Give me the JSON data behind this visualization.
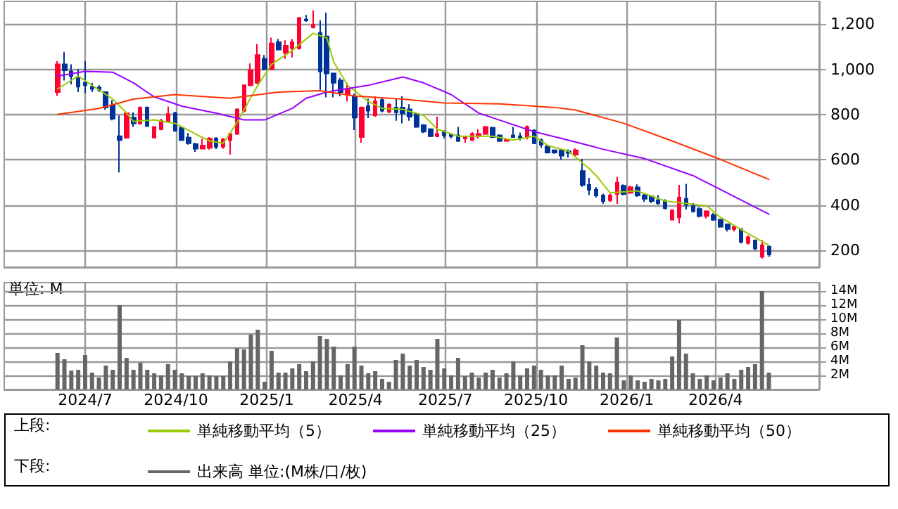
{
  "chart_data": [
    {
      "type": "candlestick",
      "xlim": [
        "2024-04-10",
        "2026-07-15"
      ],
      "ylim": [
        125,
        1300
      ],
      "grid": true,
      "tick_labels": "y",
      "legend": "bottom",
      "annotations": [
        "上段:"
      ],
      "xticks": [
        "2024-07-01",
        "2024-10-01",
        "2025-01-01",
        "2025-04-01",
        "2025-07-01",
        "2025-10-01",
        "2026-01-01",
        "2026-04-01"
      ],
      "yticks": [
        200,
        400,
        600,
        800,
        {
          "value": 1000,
          "label": "1,000"
        },
        {
          "value": 1200,
          "label": "1,200"
        }
      ],
      "x": [
        "2024-06-03",
        "2024-06-10",
        "2024-06-17",
        "2024-06-24",
        "2024-07-01",
        "2024-07-08",
        "2024-07-15",
        "2024-07-22",
        "2024-07-29",
        "2024-08-05",
        "2024-08-12",
        "2024-08-19",
        "2024-08-26",
        "2024-09-02",
        "2024-09-09",
        "2024-09-16",
        "2024-09-23",
        "2024-09-30",
        "2024-10-07",
        "2024-10-14",
        "2024-10-21",
        "2024-10-28",
        "2024-11-04",
        "2024-11-11",
        "2024-11-18",
        "2024-11-25",
        "2024-12-02",
        "2024-12-09",
        "2024-12-16",
        "2024-12-23",
        "2024-12-30",
        "2025-01-06",
        "2025-01-13",
        "2025-01-20",
        "2025-01-27",
        "2025-02-03",
        "2025-02-10",
        "2025-02-17",
        "2025-02-24",
        "2025-03-03",
        "2025-03-10",
        "2025-03-17",
        "2025-03-24",
        "2025-03-31",
        "2025-04-07",
        "2025-04-14",
        "2025-04-21",
        "2025-04-28",
        "2025-05-05",
        "2025-05-12",
        "2025-05-19",
        "2025-05-26",
        "2025-06-02",
        "2025-06-09",
        "2025-06-16",
        "2025-06-23",
        "2025-06-30",
        "2025-07-07",
        "2025-07-14",
        "2025-07-21",
        "2025-07-28",
        "2025-08-04",
        "2025-08-11",
        "2025-08-18",
        "2025-08-25",
        "2025-09-01",
        "2025-09-08",
        "2025-09-15",
        "2025-09-22",
        "2025-09-29",
        "2025-10-06",
        "2025-10-13",
        "2025-10-20",
        "2025-10-27",
        "2025-11-03",
        "2025-11-10",
        "2025-11-17",
        "2025-11-24",
        "2025-12-01",
        "2025-12-08",
        "2025-12-15",
        "2025-12-22",
        "2025-12-29",
        "2026-01-05",
        "2026-01-12",
        "2026-01-19",
        "2026-01-26",
        "2026-02-02",
        "2026-02-09",
        "2026-02-16",
        "2026-02-23",
        "2026-03-02",
        "2026-03-09",
        "2026-03-16",
        "2026-03-23",
        "2026-03-30",
        "2026-04-06",
        "2026-04-13",
        "2026-04-20",
        "2026-04-27",
        "2026-05-04",
        "2026-05-11",
        "2026-05-18",
        "2026-05-25"
      ],
      "series": [
        {
          "ohlc": [
            [
              899,
              1036,
              882,
              1022
            ],
            [
              1022,
              1077,
              950,
              995
            ],
            [
              991,
              1022,
              933,
              970
            ],
            [
              964,
              1001,
              899,
              923
            ],
            [
              940,
              1036,
              895,
              929
            ],
            [
              923,
              940,
              899,
              913
            ],
            [
              919,
              929,
              899,
              909
            ],
            [
              899,
              899,
              821,
              831
            ],
            [
              841,
              864,
              774,
              782
            ],
            [
              704,
              796,
              544,
              687
            ],
            [
              698,
              813,
              692,
              806
            ],
            [
              786,
              810,
              745,
              761
            ],
            [
              761,
              835,
              755,
              831
            ],
            [
              831,
              835,
              745,
              749
            ],
            [
              698,
              748,
              695,
              745
            ],
            [
              735,
              780,
              730,
              772
            ],
            [
              769,
              835,
              765,
              802
            ],
            [
              806,
              812,
              724,
              728
            ],
            [
              741,
              745,
              683,
              687
            ],
            [
              698,
              718,
              667,
              673
            ],
            [
              669,
              675,
              635,
              649
            ],
            [
              649,
              692,
              647,
              663
            ],
            [
              653,
              700,
              645,
              694
            ],
            [
              694,
              700,
              647,
              657
            ],
            [
              657,
              696,
              649,
              690
            ],
            [
              687,
              718,
              622,
              714
            ],
            [
              714,
              827,
              710,
              823
            ],
            [
              817,
              933,
              810,
              929
            ],
            [
              929,
              1026,
              925,
              995
            ],
            [
              940,
              1112,
              935,
              1063
            ],
            [
              1046,
              1063,
              995,
              1001
            ],
            [
              1001,
              1140,
              995,
              1114
            ],
            [
              1120,
              1134,
              1083,
              1087
            ],
            [
              1073,
              1128,
              1046,
              1104
            ],
            [
              1093,
              1134,
              1052,
              1120
            ],
            [
              1093,
              1231,
              1087,
              1227
            ],
            [
              1220,
              1240,
              1210,
              1216
            ],
            [
              1186,
              1260,
              1180,
              1196
            ],
            [
              1161,
              1216,
              909,
              991
            ],
            [
              1145,
              1250,
              876,
              981
            ],
            [
              981,
              985,
              876,
              940
            ],
            [
              950,
              962,
              880,
              899
            ],
            [
              888,
              940,
              858,
              913
            ],
            [
              878,
              892,
              731,
              786
            ],
            [
              700,
              835,
              675,
              831
            ],
            [
              837,
              870,
              784,
              817
            ],
            [
              796,
              880,
              790,
              858
            ],
            [
              864,
              870,
              810,
              817
            ],
            [
              813,
              850,
              806,
              843
            ],
            [
              831,
              870,
              772,
              810
            ],
            [
              831,
              880,
              761,
              806
            ],
            [
              823,
              845,
              772,
              790
            ],
            [
              802,
              810,
              741,
              745
            ],
            [
              753,
              757,
              718,
              724
            ],
            [
              735,
              739,
              700,
              704
            ],
            [
              704,
              790,
              700,
              714
            ],
            [
              724,
              730,
              695,
              708
            ],
            [
              712,
              718,
              695,
              704
            ],
            [
              708,
              745,
              679,
              683
            ],
            [
              694,
              706,
              675,
              700
            ],
            [
              687,
              722,
              683,
              714
            ],
            [
              704,
              735,
              694,
              714
            ],
            [
              714,
              749,
              710,
              745
            ],
            [
              741,
              745,
              696,
              700
            ],
            [
              708,
              712,
              679,
              683
            ],
            [
              683,
              692,
              681,
              687
            ],
            [
              708,
              745,
              696,
              700
            ],
            [
              704,
              720,
              685,
              694
            ],
            [
              700,
              751,
              690,
              745
            ],
            [
              729,
              735,
              669,
              673
            ],
            [
              687,
              694,
              653,
              667
            ],
            [
              659,
              663,
              628,
              632
            ],
            [
              642,
              646,
              626,
              632
            ],
            [
              642,
              650,
              600,
              618
            ],
            [
              638,
              646,
              610,
              630
            ],
            [
              622,
              650,
              614,
              642
            ],
            [
              550,
              603,
              480,
              489
            ],
            [
              489,
              520,
              444,
              468
            ],
            [
              468,
              479,
              432,
              442
            ],
            [
              442,
              450,
              405,
              417
            ],
            [
              421,
              450,
              413,
              442
            ],
            [
              448,
              524,
              405,
              499
            ],
            [
              485,
              491,
              442,
              448
            ],
            [
              454,
              485,
              450,
              478
            ],
            [
              478,
              491,
              436,
              442
            ],
            [
              442,
              450,
              413,
              427
            ],
            [
              438,
              442,
              409,
              417
            ],
            [
              421,
              444,
              401,
              407
            ],
            [
              417,
              425,
              380,
              386
            ],
            [
              335,
              380,
              335,
              376
            ],
            [
              345,
              489,
              319,
              433
            ],
            [
              427,
              493,
              380,
              401
            ],
            [
              396,
              409,
              366,
              372
            ],
            [
              382,
              390,
              345,
              351
            ],
            [
              351,
              376,
              340,
              372
            ],
            [
              355,
              364,
              330,
              335
            ],
            [
              335,
              339,
              300,
              304
            ],
            [
              314,
              318,
              283,
              294
            ],
            [
              294,
              310,
              283,
              304
            ],
            [
              294,
              296,
              230,
              237
            ],
            [
              232,
              265,
              225,
              257
            ],
            [
              243,
              247,
              200,
              208
            ],
            [
              171,
              245,
              163,
              222
            ],
            [
              216,
              220,
              171,
              181
            ]
          ],
          "colors": [
            "#ff0033",
            "#003399",
            "#003399",
            "#003399",
            "#003399",
            "#003399",
            "#003399",
            "#003399",
            "#003399",
            "#003399",
            "#ff0033",
            "#003399",
            "#ff0033",
            "#003399",
            "#ff0033",
            "#ff0033",
            "#ff0033",
            "#003399",
            "#003399",
            "#003399",
            "#003399",
            "#ff0033",
            "#ff0033",
            "#003399",
            "#ff0033",
            "#ff0033",
            "#ff0033",
            "#ff0033",
            "#ff0033",
            "#ff0033",
            "#003399",
            "#ff0033",
            "#003399",
            "#ff0033",
            "#ff0033",
            "#ff0033",
            "#003399",
            "#ff0033",
            "#003399",
            "#003399",
            "#003399",
            "#003399",
            "#ff0033",
            "#003399",
            "#ff0033",
            "#003399",
            "#ff0033",
            "#003399",
            "#ff0033",
            "#003399",
            "#003399",
            "#003399",
            "#003399",
            "#003399",
            "#003399",
            "#ff0033",
            "#003399",
            "#003399",
            "#003399",
            "#ff0033",
            "#ff0033",
            "#ff0033",
            "#ff0033",
            "#003399",
            "#003399",
            "#ff0033",
            "#003399",
            "#003399",
            "#ff0033",
            "#003399",
            "#003399",
            "#003399",
            "#003399",
            "#003399",
            "#003399",
            "#ff0033",
            "#003399",
            "#003399",
            "#003399",
            "#003399",
            "#ff0033",
            "#ff0033",
            "#003399",
            "#ff0033",
            "#003399",
            "#003399",
            "#003399",
            "#003399",
            "#003399",
            "#ff0033",
            "#ff0033",
            "#003399",
            "#003399",
            "#003399",
            "#ff0033",
            "#003399",
            "#003399",
            "#003399",
            "#ff0033",
            "#003399",
            "#ff0033",
            "#003399",
            "#ff0033",
            "#003399"
          ]
        },
        {
          "type": "line",
          "name": "単純移動平均（5）",
          "color": "#99cc00",
          "x": [
            "2024-06-03",
            "2024-06-24",
            "2024-07-29",
            "2024-08-12",
            "2024-08-19",
            "2024-09-09",
            "2024-09-30",
            "2024-10-21",
            "2024-11-04",
            "2024-11-18",
            "2024-12-02",
            "2024-12-23",
            "2025-01-06",
            "2025-01-27",
            "2025-02-17",
            "2025-03-03",
            "2025-03-10",
            "2025-03-24",
            "2025-04-14",
            "2025-04-28",
            "2025-05-19",
            "2025-06-09",
            "2025-06-23",
            "2025-07-14",
            "2025-08-04",
            "2025-08-18",
            "2025-09-08",
            "2025-09-29",
            "2025-10-13",
            "2025-11-03",
            "2025-11-24",
            "2025-12-01",
            "2025-12-15",
            "2026-01-12",
            "2026-02-09",
            "2026-03-23",
            "2026-04-06",
            "2026-05-04",
            "2026-05-25"
          ],
          "values": [
            913,
            970,
            868,
            806,
            769,
            776,
            761,
            714,
            683,
            673,
            765,
            929,
            1022,
            1083,
            1159,
            1139,
            1032,
            929,
            858,
            827,
            823,
            796,
            735,
            704,
            704,
            704,
            687,
            704,
            663,
            638,
            560,
            530,
            454,
            462,
            417,
            396,
            345,
            273,
            222
          ]
        },
        {
          "type": "line",
          "name": "単純移動平均（25）",
          "color": "#9900ff",
          "x": [
            "2024-06-03",
            "2024-07-01",
            "2024-07-29",
            "2024-08-19",
            "2024-09-09",
            "2024-10-07",
            "2024-11-11",
            "2024-12-09",
            "2024-12-30",
            "2025-01-27",
            "2025-02-10",
            "2025-03-03",
            "2025-03-17",
            "2025-04-14",
            "2025-05-19",
            "2025-06-09",
            "2025-07-07",
            "2025-08-04",
            "2025-09-01",
            "2025-09-29",
            "2025-10-27",
            "2025-11-24",
            "2025-12-08",
            "2026-01-19",
            "2026-03-09",
            "2026-04-20",
            "2026-05-25"
          ],
          "values": [
            970,
            991,
            987,
            940,
            878,
            837,
            806,
            776,
            776,
            827,
            872,
            899,
            910,
            929,
            966,
            940,
            888,
            806,
            765,
            724,
            694,
            663,
            646,
            605,
            530,
            437,
            359
          ]
        },
        {
          "type": "line",
          "name": "単純移動平均（50）",
          "color": "#ff3300",
          "x": [
            "2024-06-03",
            "2024-07-15",
            "2024-08-19",
            "2024-09-30",
            "2024-11-25",
            "2025-01-13",
            "2025-02-24",
            "2025-03-31",
            "2025-05-19",
            "2025-06-30",
            "2025-08-25",
            "2025-10-20",
            "2025-11-10",
            "2025-12-29",
            "2026-02-16",
            "2026-04-06",
            "2026-05-25"
          ],
          "values": [
            800,
            827,
            868,
            888,
            872,
            899,
            905,
            882,
            868,
            851,
            847,
            831,
            820,
            761,
            683,
            601,
            513
          ]
        }
      ]
    },
    {
      "type": "bar",
      "xlim": [
        "2024-04-10",
        "2026-07-15"
      ],
      "ylim": [
        0,
        15.2
      ],
      "grid": true,
      "legend": "bottom",
      "annotations": [
        "単位: M",
        "下段:"
      ],
      "xticks": [
        {
          "value": "2024-07-01",
          "label": "2024/7"
        },
        {
          "value": "2024-10-01",
          "label": "2024/10"
        },
        {
          "value": "2025-01-01",
          "label": "2025/1"
        },
        {
          "value": "2025-04-01",
          "label": "2025/4"
        },
        {
          "value": "2025-07-01",
          "label": "2025/7"
        },
        {
          "value": "2025-10-01",
          "label": "2025/10"
        },
        {
          "value": "2026-01-01",
          "label": "2026/1"
        },
        {
          "value": "2026-04-01",
          "label": "2026/4"
        }
      ],
      "yticks": [
        {
          "value": 2,
          "label": "2M"
        },
        {
          "value": 4,
          "label": "4M"
        },
        {
          "value": 6,
          "label": "6M"
        },
        {
          "value": 8,
          "label": "8M"
        },
        {
          "value": 10,
          "label": "10M"
        },
        {
          "value": 12,
          "label": "12M"
        },
        {
          "value": 14,
          "label": "14M"
        }
      ],
      "x": [
        "2024-06-03",
        "2024-06-10",
        "2024-06-17",
        "2024-06-24",
        "2024-07-01",
        "2024-07-08",
        "2024-07-15",
        "2024-07-22",
        "2024-07-29",
        "2024-08-05",
        "2024-08-12",
        "2024-08-19",
        "2024-08-26",
        "2024-09-02",
        "2024-09-09",
        "2024-09-16",
        "2024-09-23",
        "2024-09-30",
        "2024-10-07",
        "2024-10-14",
        "2024-10-21",
        "2024-10-28",
        "2024-11-04",
        "2024-11-11",
        "2024-11-18",
        "2024-11-25",
        "2024-12-02",
        "2024-12-09",
        "2024-12-16",
        "2024-12-23",
        "2024-12-30",
        "2025-01-06",
        "2025-01-13",
        "2025-01-20",
        "2025-01-27",
        "2025-02-03",
        "2025-02-10",
        "2025-02-17",
        "2025-02-24",
        "2025-03-03",
        "2025-03-10",
        "2025-03-17",
        "2025-03-24",
        "2025-03-31",
        "2025-04-07",
        "2025-04-14",
        "2025-04-21",
        "2025-04-28",
        "2025-05-05",
        "2025-05-12",
        "2025-05-19",
        "2025-05-26",
        "2025-06-02",
        "2025-06-09",
        "2025-06-16",
        "2025-06-23",
        "2025-06-30",
        "2025-07-07",
        "2025-07-14",
        "2025-07-21",
        "2025-07-28",
        "2025-08-04",
        "2025-08-11",
        "2025-08-18",
        "2025-08-25",
        "2025-09-01",
        "2025-09-08",
        "2025-09-15",
        "2025-09-22",
        "2025-09-29",
        "2025-10-06",
        "2025-10-13",
        "2025-10-20",
        "2025-10-27",
        "2025-11-03",
        "2025-11-10",
        "2025-11-17",
        "2025-11-24",
        "2025-12-01",
        "2025-12-08",
        "2025-12-15",
        "2025-12-22",
        "2025-12-29",
        "2026-01-05",
        "2026-01-12",
        "2026-01-19",
        "2026-01-26",
        "2026-02-02",
        "2026-02-09",
        "2026-02-16",
        "2026-02-23",
        "2026-03-02",
        "2026-03-09",
        "2026-03-16",
        "2026-03-23",
        "2026-03-30",
        "2026-04-06",
        "2026-04-13",
        "2026-04-20",
        "2026-04-27",
        "2026-05-04",
        "2026-05-11",
        "2026-05-18",
        "2026-05-25"
      ],
      "series": [
        {
          "name": "出来高 単位:(M株/口/枚)",
          "color": "#666666",
          "values": [
            5.2,
            4.3,
            2.7,
            2.8,
            4.9,
            2.4,
            1.7,
            3.4,
            2.8,
            12.0,
            4.5,
            2.8,
            3.8,
            2.8,
            2.3,
            2.0,
            3.6,
            2.8,
            2.3,
            1.9,
            1.9,
            2.3,
            2.0,
            1.9,
            1.9,
            4.0,
            5.9,
            5.7,
            7.8,
            8.5,
            1.1,
            5.5,
            2.4,
            2.4,
            3.0,
            3.6,
            2.6,
            4.0,
            7.6,
            7.2,
            6.1,
            2.0,
            3.6,
            6.1,
            3.4,
            2.3,
            2.6,
            1.5,
            1.1,
            4.2,
            5.1,
            3.4,
            4.2,
            3.2,
            2.8,
            7.2,
            3.0,
            2.0,
            4.5,
            1.9,
            2.4,
            1.7,
            2.4,
            2.8,
            1.7,
            2.3,
            4.0,
            2.0,
            3.0,
            3.4,
            2.8,
            2.0,
            2.0,
            3.4,
            1.5,
            1.7,
            6.3,
            4.0,
            3.4,
            2.4,
            2.3,
            7.4,
            1.3,
            2.0,
            1.3,
            1.1,
            1.5,
            1.3,
            1.5,
            4.7,
            9.9,
            5.1,
            2.3,
            1.5,
            2.0,
            1.3,
            1.7,
            2.3,
            1.5,
            2.8,
            3.2,
            3.6,
            14.0,
            2.4
          ]
        }
      ]
    }
  ]
}
